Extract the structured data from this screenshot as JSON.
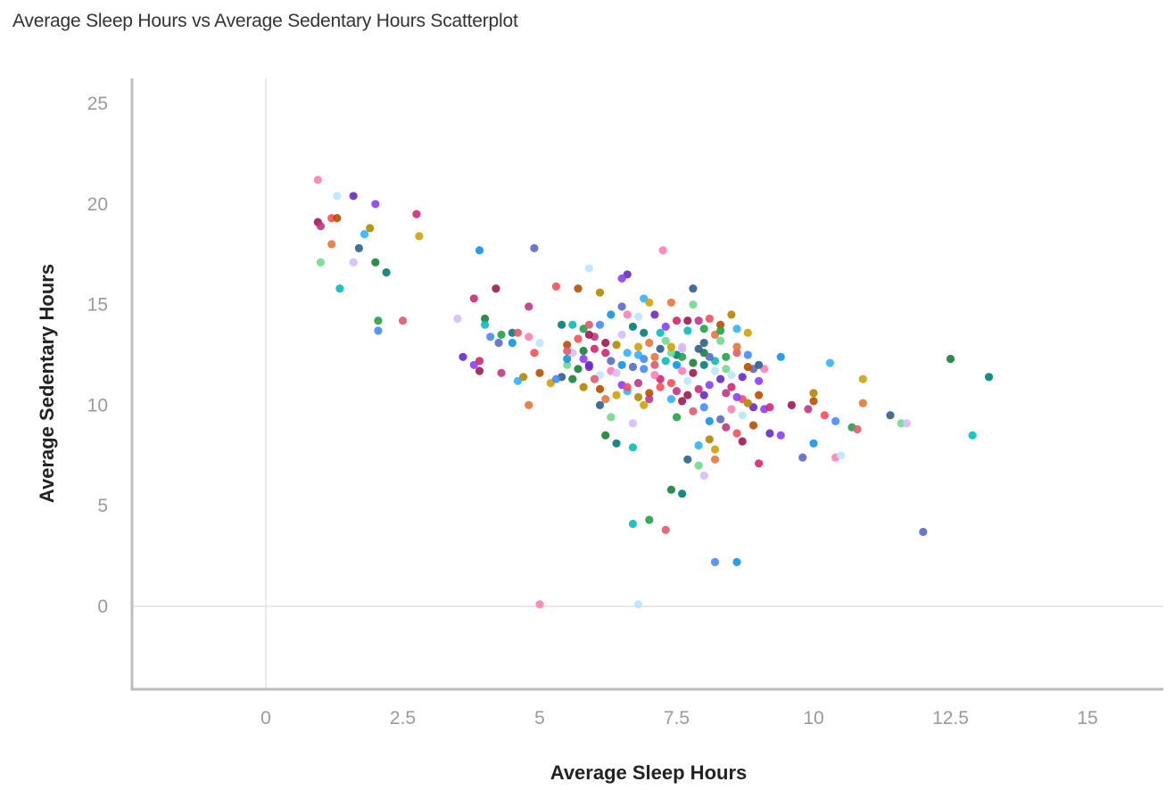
{
  "chart_data": {
    "type": "scatter",
    "title": "Average Sleep Hours vs Average Sedentary Hours Scatterplot",
    "xlabel": "Average Sleep Hours",
    "ylabel": "Average Sedentary Hours",
    "xlim": [
      -2.5,
      16.5
    ],
    "ylim": [
      -4,
      26
    ],
    "xticks": [
      "0",
      "2.5",
      "5",
      "7.5",
      "10",
      "12.5",
      "15"
    ],
    "yticks": [
      "0",
      "5",
      "10",
      "15",
      "20",
      "25"
    ],
    "grid": false,
    "legend": "none",
    "palette": [
      "#8a3ffc",
      "#33b1ff",
      "#007d79",
      "#ff7eb6",
      "#fa4d56",
      "#6fdc8c",
      "#4589ff",
      "#d12771",
      "#d2a106",
      "#08bdba",
      "#bae6ff",
      "#ba4e00",
      "#d4bbff",
      "#1192e8",
      "#9f1853",
      "#e8743b",
      "#24a148",
      "#6929c4",
      "#b28600",
      "#198038",
      "#5a6ac8",
      "#c13584",
      "#2e5f8a",
      "#e05a6b"
    ],
    "points": [
      [
        0.95,
        21.2
      ],
      [
        1.3,
        20.4
      ],
      [
        1.6,
        20.4
      ],
      [
        2.0,
        20.0
      ],
      [
        2.75,
        19.5
      ],
      [
        0.95,
        19.1
      ],
      [
        1.0,
        18.9
      ],
      [
        1.2,
        19.3
      ],
      [
        1.3,
        19.3
      ],
      [
        1.9,
        18.8
      ],
      [
        1.8,
        18.5
      ],
      [
        2.8,
        18.4
      ],
      [
        1.2,
        18.0
      ],
      [
        1.7,
        17.8
      ],
      [
        1.0,
        17.1
      ],
      [
        1.6,
        17.1
      ],
      [
        2.0,
        17.1
      ],
      [
        2.2,
        16.6
      ],
      [
        1.35,
        15.8
      ],
      [
        2.05,
        14.2
      ],
      [
        2.5,
        14.2
      ],
      [
        2.05,
        13.7
      ],
      [
        3.9,
        17.7
      ],
      [
        4.9,
        17.8
      ],
      [
        7.25,
        17.7
      ],
      [
        5.9,
        16.8
      ],
      [
        6.6,
        16.5
      ],
      [
        6.5,
        16.3
      ],
      [
        3.8,
        15.3
      ],
      [
        4.2,
        15.8
      ],
      [
        4.8,
        14.9
      ],
      [
        5.3,
        15.9
      ],
      [
        5.7,
        15.8
      ],
      [
        6.1,
        15.6
      ],
      [
        6.9,
        15.3
      ],
      [
        7.0,
        15.1
      ],
      [
        7.4,
        15.1
      ],
      [
        7.8,
        15.8
      ],
      [
        7.8,
        15.0
      ],
      [
        3.5,
        14.3
      ],
      [
        4.0,
        14.3
      ],
      [
        4.5,
        13.6
      ],
      [
        4.0,
        14.0
      ],
      [
        4.3,
        13.5
      ],
      [
        4.6,
        13.6
      ],
      [
        4.1,
        13.4
      ],
      [
        4.5,
        13.1
      ],
      [
        4.25,
        13.1
      ],
      [
        4.8,
        13.4
      ],
      [
        5.0,
        13.1
      ],
      [
        3.6,
        12.4
      ],
      [
        3.8,
        12.0
      ],
      [
        3.9,
        12.2
      ],
      [
        3.9,
        11.7
      ],
      [
        4.3,
        11.6
      ],
      [
        4.9,
        12.6
      ],
      [
        5.0,
        11.6
      ],
      [
        4.7,
        11.4
      ],
      [
        4.6,
        11.2
      ],
      [
        5.2,
        11.1
      ],
      [
        4.8,
        10.0
      ],
      [
        5.4,
        11.4
      ],
      [
        5.5,
        12.0
      ],
      [
        5.6,
        12.6
      ],
      [
        5.6,
        11.3
      ],
      [
        5.4,
        14.0
      ],
      [
        5.6,
        14.0
      ],
      [
        5.8,
        13.8
      ],
      [
        5.9,
        14.0
      ],
      [
        6.1,
        14.0
      ],
      [
        6.3,
        14.5
      ],
      [
        6.5,
        14.9
      ],
      [
        6.6,
        14.5
      ],
      [
        6.8,
        14.4
      ],
      [
        7.1,
        14.5
      ],
      [
        7.3,
        13.9
      ],
      [
        7.5,
        14.2
      ],
      [
        7.7,
        14.2
      ],
      [
        7.9,
        14.2
      ],
      [
        8.1,
        14.3
      ],
      [
        8.3,
        14.0
      ],
      [
        8.5,
        14.5
      ],
      [
        8.6,
        13.8
      ],
      [
        8.8,
        13.6
      ],
      [
        8.2,
        13.5
      ],
      [
        8.0,
        13.1
      ],
      [
        8.3,
        13.2
      ],
      [
        7.6,
        12.9
      ],
      [
        8.0,
        12.6
      ],
      [
        7.5,
        12.5
      ],
      [
        7.3,
        12.2
      ],
      [
        7.6,
        12.4
      ],
      [
        7.1,
        12.0
      ],
      [
        6.9,
        11.8
      ],
      [
        6.5,
        12.0
      ],
      [
        6.7,
        11.9
      ],
      [
        6.3,
        11.7
      ],
      [
        6.1,
        11.5
      ],
      [
        5.9,
        11.9
      ],
      [
        5.8,
        12.3
      ],
      [
        6.0,
        12.8
      ],
      [
        6.2,
        13.1
      ],
      [
        6.0,
        13.4
      ],
      [
        5.7,
        13.3
      ],
      [
        5.5,
        13.0
      ],
      [
        6.4,
        13.0
      ],
      [
        6.6,
        12.6
      ],
      [
        6.8,
        12.9
      ],
      [
        7.0,
        13.1
      ],
      [
        7.2,
        12.8
      ],
      [
        7.4,
        12.6
      ],
      [
        7.6,
        12.8
      ],
      [
        7.8,
        12.1
      ],
      [
        8.0,
        12.0
      ],
      [
        8.2,
        12.2
      ],
      [
        8.4,
        12.4
      ],
      [
        8.6,
        12.6
      ],
      [
        8.8,
        12.5
      ],
      [
        9.4,
        12.4
      ],
      [
        8.9,
        11.8
      ],
      [
        9.1,
        11.8
      ],
      [
        8.5,
        11.5
      ],
      [
        8.3,
        11.3
      ],
      [
        8.1,
        11.0
      ],
      [
        7.9,
        10.8
      ],
      [
        7.7,
        10.5
      ],
      [
        7.5,
        10.7
      ],
      [
        7.2,
        10.9
      ],
      [
        7.0,
        10.6
      ],
      [
        6.8,
        10.4
      ],
      [
        6.6,
        10.7
      ],
      [
        6.4,
        10.5
      ],
      [
        6.2,
        10.3
      ],
      [
        6.1,
        10.0
      ],
      [
        6.3,
        9.4
      ],
      [
        6.7,
        9.1
      ],
      [
        6.2,
        8.5
      ],
      [
        6.4,
        8.1
      ],
      [
        6.7,
        7.9
      ],
      [
        7.5,
        9.4
      ],
      [
        7.8,
        9.7
      ],
      [
        8.0,
        9.9
      ],
      [
        8.1,
        9.2
      ],
      [
        8.3,
        9.3
      ],
      [
        8.5,
        9.8
      ],
      [
        8.7,
        9.5
      ],
      [
        8.9,
        9.9
      ],
      [
        9.1,
        9.8
      ],
      [
        9.2,
        9.9
      ],
      [
        9.6,
        10.0
      ],
      [
        9.9,
        9.8
      ],
      [
        10.2,
        9.5
      ],
      [
        10.0,
        10.2
      ],
      [
        10.0,
        10.6
      ],
      [
        10.3,
        12.1
      ],
      [
        10.9,
        11.3
      ],
      [
        10.9,
        10.1
      ],
      [
        11.4,
        9.5
      ],
      [
        11.6,
        9.1
      ],
      [
        11.7,
        9.1
      ],
      [
        12.5,
        12.3
      ],
      [
        13.2,
        11.4
      ],
      [
        12.9,
        8.5
      ],
      [
        10.7,
        8.9
      ],
      [
        10.8,
        8.8
      ],
      [
        10.4,
        9.2
      ],
      [
        10.0,
        8.1
      ],
      [
        9.8,
        7.4
      ],
      [
        10.4,
        7.4
      ],
      [
        10.5,
        7.5
      ],
      [
        9.2,
        8.6
      ],
      [
        9.4,
        8.5
      ],
      [
        9.0,
        7.1
      ],
      [
        8.7,
        8.2
      ],
      [
        8.4,
        8.9
      ],
      [
        8.6,
        8.6
      ],
      [
        8.9,
        9.0
      ],
      [
        8.1,
        8.3
      ],
      [
        7.9,
        8.0
      ],
      [
        8.2,
        7.8
      ],
      [
        8.2,
        7.3
      ],
      [
        7.7,
        7.3
      ],
      [
        7.9,
        7.0
      ],
      [
        8.0,
        6.5
      ],
      [
        7.4,
        5.8
      ],
      [
        7.6,
        5.6
      ],
      [
        6.7,
        4.1
      ],
      [
        7.0,
        4.3
      ],
      [
        7.3,
        3.8
      ],
      [
        8.2,
        2.2
      ],
      [
        8.6,
        2.2
      ],
      [
        12.0,
        3.7
      ],
      [
        5.0,
        0.1
      ],
      [
        6.8,
        0.1
      ],
      [
        5.9,
        12.0
      ],
      [
        6.5,
        11.0
      ],
      [
        7.2,
        11.3
      ],
      [
        7.8,
        11.6
      ],
      [
        8.4,
        10.6
      ],
      [
        8.7,
        10.3
      ],
      [
        9.0,
        10.5
      ],
      [
        8.8,
        10.1
      ],
      [
        7.4,
        10.3
      ],
      [
        6.9,
        10.0
      ],
      [
        7.1,
        12.4
      ],
      [
        7.9,
        12.8
      ],
      [
        7.3,
        13.2
      ],
      [
        6.5,
        13.5
      ],
      [
        5.8,
        12.7
      ],
      [
        6.9,
        13.6
      ],
      [
        7.2,
        13.6
      ],
      [
        8.0,
        13.8
      ],
      [
        6.0,
        11.3
      ],
      [
        5.3,
        11.3
      ],
      [
        5.5,
        12.3
      ],
      [
        6.3,
        12.2
      ],
      [
        7.6,
        11.7
      ],
      [
        8.2,
        11.7
      ],
      [
        8.7,
        11.4
      ],
      [
        9.0,
        11.2
      ],
      [
        8.5,
        10.9
      ],
      [
        7.6,
        10.2
      ],
      [
        7.0,
        10.3
      ],
      [
        6.6,
        10.9
      ],
      [
        6.1,
        10.8
      ],
      [
        5.8,
        10.9
      ],
      [
        6.8,
        12.5
      ],
      [
        7.4,
        12.9
      ],
      [
        8.6,
        12.9
      ],
      [
        9.0,
        12.0
      ],
      [
        8.4,
        11.8
      ],
      [
        6.4,
        11.6
      ],
      [
        5.7,
        11.8
      ],
      [
        6.7,
        13.9
      ],
      [
        7.7,
        13.7
      ],
      [
        8.3,
        13.7
      ],
      [
        5.5,
        12.7
      ],
      [
        6.9,
        12.3
      ],
      [
        7.5,
        12.0
      ],
      [
        8.1,
        12.4
      ],
      [
        7.1,
        11.5
      ],
      [
        7.7,
        11.2
      ],
      [
        8.0,
        10.5
      ],
      [
        8.6,
        10.4
      ],
      [
        6.2,
        12.6
      ],
      [
        5.9,
        13.5
      ],
      [
        6.8,
        11.1
      ],
      [
        7.4,
        11.1
      ],
      [
        8.8,
        11.9
      ]
    ]
  }
}
